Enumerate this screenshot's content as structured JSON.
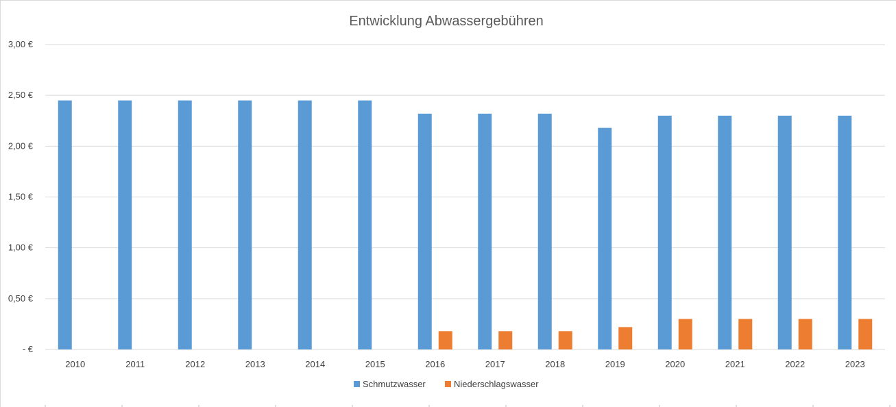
{
  "chart_data": {
    "type": "bar",
    "title": "Entwicklung Abwassergebühren",
    "categories": [
      "2010",
      "2011",
      "2012",
      "2013",
      "2014",
      "2015",
      "2016",
      "2017",
      "2018",
      "2019",
      "2020",
      "2021",
      "2022",
      "2023"
    ],
    "series": [
      {
        "name": "Schmutzwasser",
        "color": "#5b9bd5",
        "values": [
          2.45,
          2.45,
          2.45,
          2.45,
          2.45,
          2.45,
          2.32,
          2.32,
          2.32,
          2.18,
          2.3,
          2.3,
          2.3,
          2.3
        ]
      },
      {
        "name": "Niederschlagswasser",
        "color": "#ed7d31",
        "values": [
          0,
          0,
          0,
          0,
          0,
          0,
          0.18,
          0.18,
          0.18,
          0.22,
          0.3,
          0.3,
          0.3,
          0.3
        ]
      }
    ],
    "ylim": [
      0,
      3.0
    ],
    "yticks": [
      {
        "value": 3.0,
        "label": "3,00 €"
      },
      {
        "value": 2.5,
        "label": "2,50 €"
      },
      {
        "value": 2.0,
        "label": "2,00 €"
      },
      {
        "value": 1.5,
        "label": "1,50 €"
      },
      {
        "value": 1.0,
        "label": "1,00 €"
      },
      {
        "value": 0.5,
        "label": "0,50 €"
      },
      {
        "value": 0,
        "label": "-   €"
      }
    ],
    "grid": true,
    "legend_position": "bottom",
    "gridline_color": "#d9d9d9"
  }
}
